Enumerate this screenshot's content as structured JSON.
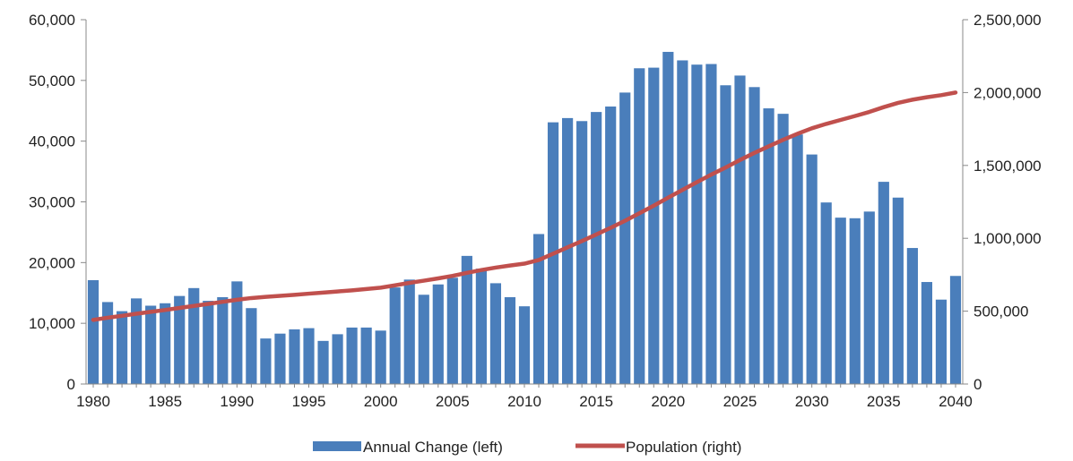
{
  "chart_data": {
    "type": "bar",
    "title": "",
    "xlabel": "",
    "ylabel": "",
    "y2label": "",
    "x": [
      1980,
      1981,
      1982,
      1983,
      1984,
      1985,
      1986,
      1987,
      1988,
      1989,
      1990,
      1991,
      1992,
      1993,
      1994,
      1995,
      1996,
      1997,
      1998,
      1999,
      2000,
      2001,
      2002,
      2003,
      2004,
      2005,
      2006,
      2007,
      2008,
      2009,
      2010,
      2011,
      2012,
      2013,
      2014,
      2015,
      2016,
      2017,
      2018,
      2019,
      2020,
      2021,
      2022,
      2023,
      2024,
      2025,
      2026,
      2027,
      2028,
      2029,
      2030,
      2031,
      2032,
      2033,
      2034,
      2035,
      2036,
      2037,
      2038,
      2039,
      2040
    ],
    "x_tick_labels": [
      "1980",
      "1985",
      "1990",
      "1995",
      "2000",
      "2005",
      "2010",
      "2015",
      "2020",
      "2025",
      "2030",
      "2035",
      "2040"
    ],
    "ylim": [
      0,
      60000
    ],
    "y_tick_labels": [
      "0",
      "10,000",
      "20,000",
      "30,000",
      "40,000",
      "50,000",
      "60,000"
    ],
    "y2lim": [
      0,
      2500000
    ],
    "y2_tick_labels": [
      "0",
      "500,000",
      "1,000,000",
      "1,500,000",
      "2,000,000",
      "2,500,000"
    ],
    "legend_position": "bottom",
    "grid": false,
    "series": [
      {
        "name": "Annual Change (left)",
        "type": "bar",
        "axis": "left",
        "color": "#4a7ebb",
        "values": [
          17100,
          13500,
          12000,
          14100,
          12900,
          13300,
          14500,
          15800,
          13700,
          14300,
          16900,
          12500,
          7500,
          8300,
          9000,
          9200,
          7100,
          8200,
          9300,
          9300,
          8800,
          15900,
          17200,
          14700,
          16400,
          17500,
          21100,
          19000,
          16600,
          14300,
          12800,
          24700,
          43100,
          43800,
          43300,
          44800,
          45700,
          48000,
          52000,
          52100,
          54700,
          53300,
          52600,
          52700,
          49200,
          50800,
          48900,
          45400,
          44500,
          41100,
          37800,
          29900,
          27400,
          27300,
          28400,
          33300,
          30700,
          22400,
          16800,
          13900,
          17800
        ]
      },
      {
        "name": "Population (right)",
        "type": "line",
        "axis": "right",
        "color": "#c0504d",
        "values": [
          440000,
          455000,
          468000,
          482000,
          495000,
          508000,
          522000,
          536000,
          550000,
          564000,
          578000,
          590000,
          598000,
          605000,
          612000,
          620000,
          627000,
          635000,
          643000,
          652000,
          661000,
          677000,
          694000,
          709000,
          725000,
          742000,
          763000,
          782000,
          799000,
          813000,
          826000,
          851000,
          894000,
          938000,
          981000,
          1026000,
          1072000,
          1120000,
          1172000,
          1224000,
          1279000,
          1332000,
          1385000,
          1437000,
          1486000,
          1537000,
          1586000,
          1631000,
          1676000,
          1717000,
          1755000,
          1785000,
          1812000,
          1839000,
          1867000,
          1900000,
          1929000,
          1951000,
          1968000,
          1982000,
          2000000
        ]
      }
    ]
  },
  "legend": {
    "items": [
      {
        "label": "Annual Change (left)",
        "color": "#4a7ebb",
        "shape": "bar"
      },
      {
        "label": "Population (right)",
        "color": "#c0504d",
        "shape": "line"
      }
    ]
  }
}
